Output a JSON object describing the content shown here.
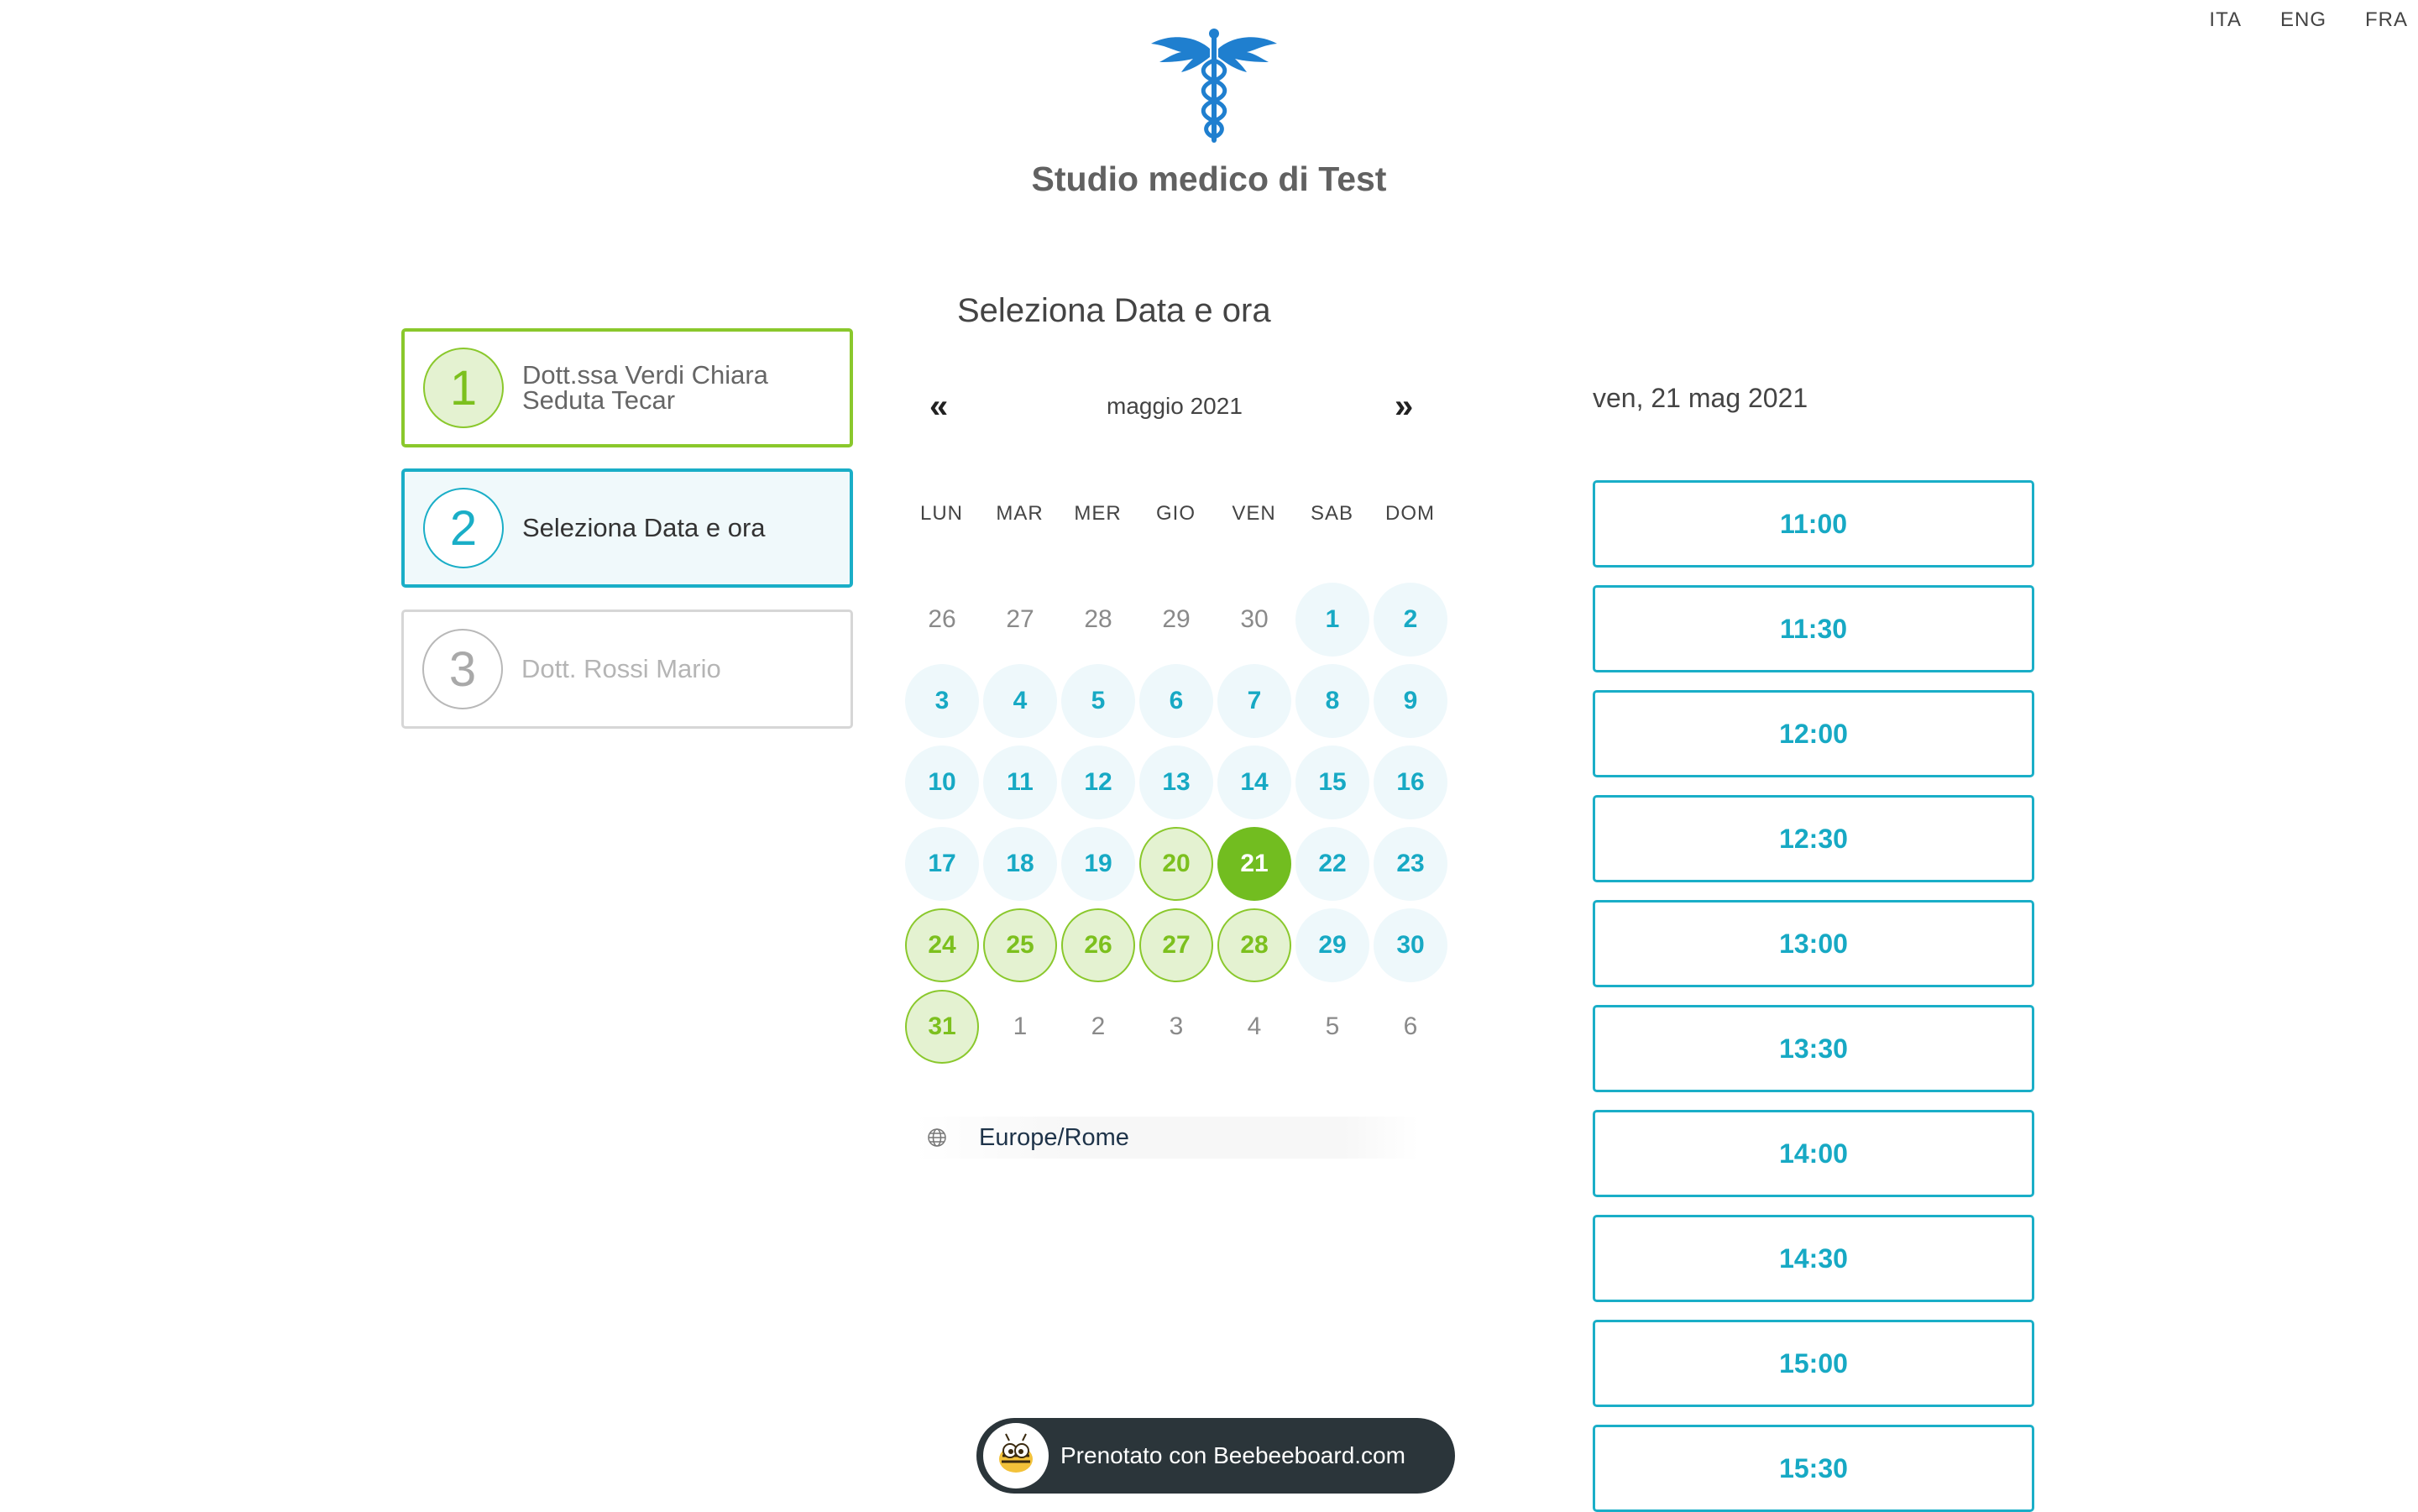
{
  "languages": [
    "ITA",
    "ENG",
    "FRA"
  ],
  "studio": {
    "name": "Studio medico di Test"
  },
  "steps": [
    {
      "number": "1",
      "line1": "Dott.ssa Verdi Chiara",
      "line2": "Seduta Tecar",
      "state": "done"
    },
    {
      "number": "2",
      "line1": "Seleziona Data e ora",
      "state": "active"
    },
    {
      "number": "3",
      "line1": "Dott. Rossi Mario",
      "state": "pending"
    }
  ],
  "section_title": "Seleziona Data e ora",
  "calendar": {
    "prev_label": "«",
    "next_label": "»",
    "month_label": "maggio 2021",
    "weekdays": [
      "LUN",
      "MAR",
      "MER",
      "GIO",
      "VEN",
      "SAB",
      "DOM"
    ],
    "days": [
      {
        "label": "26",
        "state": "out"
      },
      {
        "label": "27",
        "state": "out"
      },
      {
        "label": "28",
        "state": "out"
      },
      {
        "label": "29",
        "state": "out"
      },
      {
        "label": "30",
        "state": "out"
      },
      {
        "label": "1",
        "state": "available"
      },
      {
        "label": "2",
        "state": "available"
      },
      {
        "label": "3",
        "state": "available"
      },
      {
        "label": "4",
        "state": "available"
      },
      {
        "label": "5",
        "state": "available"
      },
      {
        "label": "6",
        "state": "available"
      },
      {
        "label": "7",
        "state": "available"
      },
      {
        "label": "8",
        "state": "available"
      },
      {
        "label": "9",
        "state": "available"
      },
      {
        "label": "10",
        "state": "available"
      },
      {
        "label": "11",
        "state": "available"
      },
      {
        "label": "12",
        "state": "available"
      },
      {
        "label": "13",
        "state": "available"
      },
      {
        "label": "14",
        "state": "available"
      },
      {
        "label": "15",
        "state": "available"
      },
      {
        "label": "16",
        "state": "available"
      },
      {
        "label": "17",
        "state": "available"
      },
      {
        "label": "18",
        "state": "available"
      },
      {
        "label": "19",
        "state": "available"
      },
      {
        "label": "20",
        "state": "highlighted"
      },
      {
        "label": "21",
        "state": "selected"
      },
      {
        "label": "22",
        "state": "available"
      },
      {
        "label": "23",
        "state": "available"
      },
      {
        "label": "24",
        "state": "highlighted"
      },
      {
        "label": "25",
        "state": "highlighted"
      },
      {
        "label": "26",
        "state": "highlighted"
      },
      {
        "label": "27",
        "state": "highlighted"
      },
      {
        "label": "28",
        "state": "highlighted"
      },
      {
        "label": "29",
        "state": "available"
      },
      {
        "label": "30",
        "state": "available"
      },
      {
        "label": "31",
        "state": "highlighted"
      },
      {
        "label": "1",
        "state": "out"
      },
      {
        "label": "2",
        "state": "out"
      },
      {
        "label": "3",
        "state": "out"
      },
      {
        "label": "4",
        "state": "out"
      },
      {
        "label": "5",
        "state": "out"
      },
      {
        "label": "6",
        "state": "out"
      }
    ],
    "timezone": "Europe/Rome",
    "timezone_icon": "globe-icon"
  },
  "slots": {
    "date_label": "ven, 21 mag 2021",
    "times": [
      "11:00",
      "11:30",
      "12:00",
      "12:30",
      "13:00",
      "13:30",
      "14:00",
      "14:30",
      "15:00",
      "15:30"
    ]
  },
  "footer": {
    "badge_text": "Prenotato con Beebeeboard.com",
    "badge_icon": "bee-icon"
  },
  "colors": {
    "accent_blue": "#1aaec7",
    "accent_green": "#72bd20",
    "highlight_green_bg": "#e4f2d1",
    "available_bg": "#eef8fb",
    "logo_blue": "#1f7fcf"
  }
}
